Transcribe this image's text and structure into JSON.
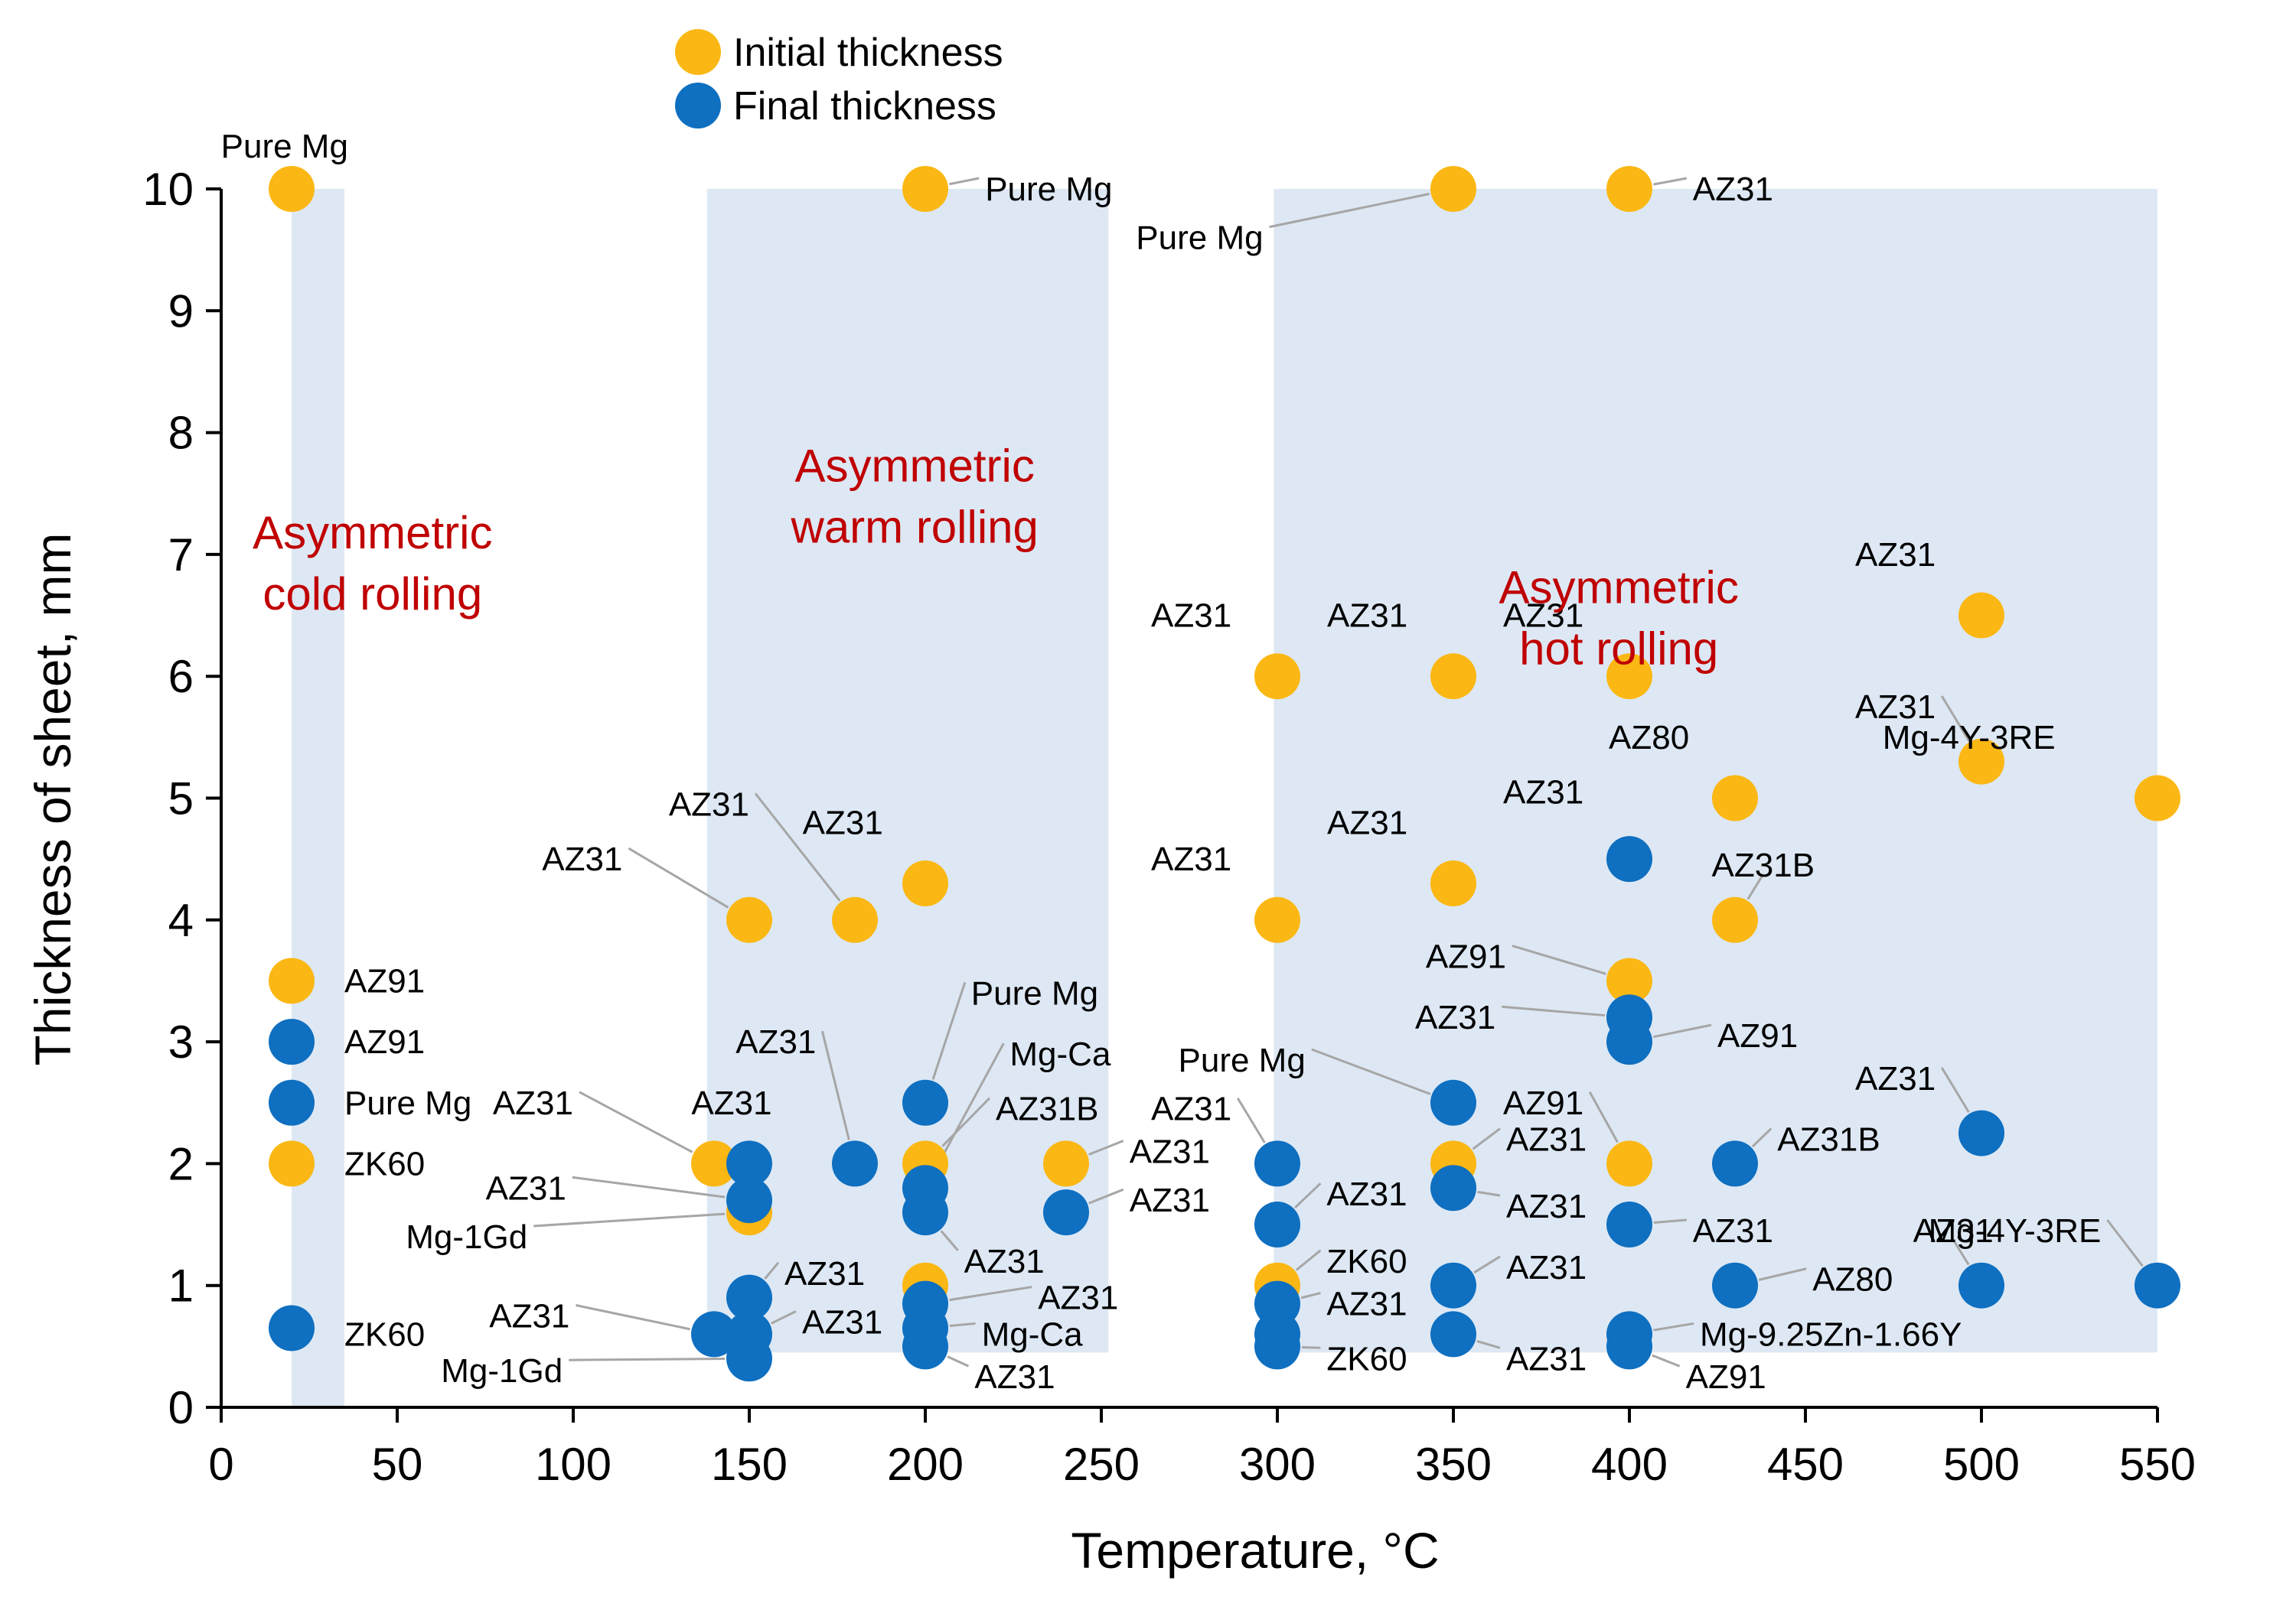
{
  "chart_data": {
    "type": "scatter",
    "xlabel": "Temperature, °C",
    "ylabel": "Thickness of sheet, mm",
    "xlim": [
      0,
      550
    ],
    "ylim": [
      0,
      10
    ],
    "xticks": [
      0,
      50,
      100,
      150,
      200,
      250,
      300,
      350,
      400,
      450,
      500,
      550
    ],
    "yticks": [
      0,
      1,
      2,
      3,
      4,
      5,
      6,
      7,
      8,
      9,
      10
    ],
    "colors": {
      "initial": "#fbb714",
      "final": "#0f6fc0",
      "region": "#dde8f4",
      "region_text": "#c00000"
    },
    "legend": [
      {
        "name": "Initial thickness",
        "series": "initial"
      },
      {
        "name": "Final thickness",
        "series": "final"
      }
    ],
    "regions": [
      {
        "x": [
          20,
          35
        ],
        "y": [
          0,
          10
        ],
        "label": [
          "Asymmetric",
          "cold rolling"
        ],
        "label_at": [
          43,
          7.05
        ]
      },
      {
        "x": [
          138,
          252
        ],
        "y": [
          0.45,
          10
        ],
        "label": [
          "Asymmetric",
          "warm rolling"
        ],
        "label_at": [
          197,
          7.6
        ]
      },
      {
        "x": [
          299,
          550
        ],
        "y": [
          0.45,
          10
        ],
        "label": [
          "Asymmetric",
          "hot rolling"
        ],
        "label_at": [
          397,
          6.6
        ]
      }
    ],
    "series": [
      {
        "name": "Initial thickness",
        "key": "initial",
        "points": [
          {
            "x": 20,
            "y": 10,
            "label": "Pure Mg",
            "lx": 18,
            "ly": 10.35
          },
          {
            "x": 20,
            "y": 3.5,
            "label": "AZ91",
            "lx": 35,
            "ly": 3.5
          },
          {
            "x": 20,
            "y": 2,
            "label": "ZK60",
            "lx": 35,
            "ly": 2
          },
          {
            "x": 140,
            "y": 2,
            "label": "AZ31",
            "lx": 100,
            "ly": 2.5,
            "leader": true
          },
          {
            "x": 150,
            "y": 4,
            "label": "AZ31",
            "lx": 114,
            "ly": 4.5,
            "leader": true
          },
          {
            "x": 150,
            "y": 1.6,
            "label": "Mg-1Gd",
            "lx": 87,
            "ly": 1.4,
            "leader": true
          },
          {
            "x": 180,
            "y": 4,
            "label": "AZ31",
            "lx": 150,
            "ly": 4.95,
            "leader": true
          },
          {
            "x": 200,
            "y": 4.3,
            "label": "AZ31",
            "lx": 188,
            "ly": 4.8
          },
          {
            "x": 200,
            "y": 10,
            "label": "Pure Mg",
            "lx": 217,
            "ly": 10,
            "leader": true
          },
          {
            "x": 200,
            "y": 2,
            "label": "AZ31B",
            "lx": 220,
            "ly": 2.45,
            "leader": true
          },
          {
            "x": 200,
            "y": 1,
            "label": "",
            "lx": 0,
            "ly": 0
          },
          {
            "x": 240,
            "y": 2,
            "label": "AZ31",
            "lx": 258,
            "ly": 2.1,
            "leader": true
          },
          {
            "x": 300,
            "y": 6,
            "label": "AZ31",
            "lx": 287,
            "ly": 6.5
          },
          {
            "x": 300,
            "y": 4,
            "label": "AZ31",
            "lx": 287,
            "ly": 4.5
          },
          {
            "x": 300,
            "y": 1,
            "label": "ZK60",
            "lx": 314,
            "ly": 1.2,
            "leader": true
          },
          {
            "x": 350,
            "y": 10,
            "label": "Pure Mg",
            "lx": 296,
            "ly": 9.6,
            "leader": true
          },
          {
            "x": 350,
            "y": 6,
            "label": "AZ31",
            "lx": 337,
            "ly": 6.5
          },
          {
            "x": 350,
            "y": 4.3,
            "label": "AZ31",
            "lx": 337,
            "ly": 4.8
          },
          {
            "x": 350,
            "y": 2,
            "label": "AZ31",
            "lx": 365,
            "ly": 2.2,
            "leader": true
          },
          {
            "x": 400,
            "y": 10,
            "label": "AZ31",
            "lx": 418,
            "ly": 10,
            "leader": true
          },
          {
            "x": 400,
            "y": 6,
            "label": "AZ31",
            "lx": 387,
            "ly": 6.5
          },
          {
            "x": 400,
            "y": 3.5,
            "label": "AZ91",
            "lx": 365,
            "ly": 3.7,
            "leader": true
          },
          {
            "x": 400,
            "y": 2,
            "label": "AZ91",
            "lx": 387,
            "ly": 2.5,
            "leader": true
          },
          {
            "x": 430,
            "y": 5,
            "label": "AZ80",
            "lx": 417,
            "ly": 5.5
          },
          {
            "x": 430,
            "y": 4,
            "label": "AZ31B",
            "lx": 438,
            "ly": 4.45,
            "leader": true
          },
          {
            "x": 500,
            "y": 6.5,
            "label": "AZ31",
            "lx": 487,
            "ly": 7.0
          },
          {
            "x": 500,
            "y": 5.3,
            "label": "AZ31",
            "lx": 487,
            "ly": 5.75,
            "leader": true
          },
          {
            "x": 550,
            "y": 5,
            "label": "Mg-4Y-3RE",
            "lx": 521,
            "ly": 5.5
          }
        ]
      },
      {
        "name": "Final thickness",
        "key": "final",
        "points": [
          {
            "x": 20,
            "y": 3,
            "label": "AZ91",
            "lx": 35,
            "ly": 3
          },
          {
            "x": 20,
            "y": 2.5,
            "label": "Pure Mg",
            "lx": 35,
            "ly": 2.5
          },
          {
            "x": 20,
            "y": 0.65,
            "label": "ZK60",
            "lx": 35,
            "ly": 0.6
          },
          {
            "x": 140,
            "y": 0.6,
            "label": "AZ31",
            "lx": 99,
            "ly": 0.75,
            "leader": true
          },
          {
            "x": 150,
            "y": 2,
            "label": "AZ31",
            "lx": 145,
            "ly": 2.5
          },
          {
            "x": 150,
            "y": 1.7,
            "label": "AZ31",
            "lx": 98,
            "ly": 1.8,
            "leader": true
          },
          {
            "x": 150,
            "y": 0.9,
            "label": "AZ31",
            "lx": 160,
            "ly": 1.1,
            "leader": true
          },
          {
            "x": 150,
            "y": 0.6,
            "label": "AZ31",
            "lx": 165,
            "ly": 0.7,
            "leader": true
          },
          {
            "x": 150,
            "y": 0.4,
            "label": "Mg-1Gd",
            "lx": 97,
            "ly": 0.3,
            "leader": true
          },
          {
            "x": 180,
            "y": 2,
            "label": "AZ31",
            "lx": 169,
            "ly": 3.0,
            "leader": true
          },
          {
            "x": 200,
            "y": 2.5,
            "label": "Pure Mg",
            "lx": 213,
            "ly": 3.4,
            "leader": true
          },
          {
            "x": 200,
            "y": 1.8,
            "label": "Mg-Ca",
            "lx": 224,
            "ly": 2.9,
            "leader": true
          },
          {
            "x": 200,
            "y": 1.6,
            "label": "AZ31",
            "lx": 211,
            "ly": 1.2,
            "leader": true
          },
          {
            "x": 200,
            "y": 0.85,
            "label": "AZ31",
            "lx": 232,
            "ly": 0.9,
            "leader": true
          },
          {
            "x": 200,
            "y": 0.65,
            "label": "Mg-Ca",
            "lx": 216,
            "ly": 0.6,
            "leader": true
          },
          {
            "x": 200,
            "y": 0.5,
            "label": "AZ31",
            "lx": 214,
            "ly": 0.25,
            "leader": true
          },
          {
            "x": 240,
            "y": 1.6,
            "label": "AZ31",
            "lx": 258,
            "ly": 1.7,
            "leader": true
          },
          {
            "x": 300,
            "y": 2,
            "label": "AZ31",
            "lx": 287,
            "ly": 2.45,
            "leader": true
          },
          {
            "x": 300,
            "y": 1.5,
            "label": "AZ31",
            "lx": 314,
            "ly": 1.75,
            "leader": true
          },
          {
            "x": 300,
            "y": 0.85,
            "label": "AZ31",
            "lx": 314,
            "ly": 0.85,
            "leader": true
          },
          {
            "x": 300,
            "y": 0.5,
            "label": "ZK60",
            "lx": 314,
            "ly": 0.4,
            "leader": true
          },
          {
            "x": 300,
            "y": 0.6,
            "label": "",
            "lx": 0,
            "ly": 0
          },
          {
            "x": 350,
            "y": 2.5,
            "label": "Pure Mg",
            "lx": 308,
            "ly": 2.85,
            "leader": true
          },
          {
            "x": 350,
            "y": 1.8,
            "label": "AZ31",
            "lx": 365,
            "ly": 1.65,
            "leader": true
          },
          {
            "x": 350,
            "y": 1,
            "label": "AZ31",
            "lx": 365,
            "ly": 1.15,
            "leader": true
          },
          {
            "x": 350,
            "y": 0.6,
            "label": "AZ31",
            "lx": 365,
            "ly": 0.4,
            "leader": true
          },
          {
            "x": 400,
            "y": 4.5,
            "label": "AZ31",
            "lx": 387,
            "ly": 5.05
          },
          {
            "x": 400,
            "y": 3.2,
            "label": "AZ31",
            "lx": 362,
            "ly": 3.2,
            "leader": true
          },
          {
            "x": 400,
            "y": 3,
            "label": "AZ91",
            "lx": 425,
            "ly": 3.05,
            "leader": true
          },
          {
            "x": 400,
            "y": 1.5,
            "label": "AZ31",
            "lx": 418,
            "ly": 1.45,
            "leader": true
          },
          {
            "x": 400,
            "y": 0.6,
            "label": "Mg-9.25Zn-1.66Y",
            "lx": 420,
            "ly": 0.6,
            "leader": true
          },
          {
            "x": 400,
            "y": 0.5,
            "label": "AZ91",
            "lx": 416,
            "ly": 0.25,
            "leader": true
          },
          {
            "x": 430,
            "y": 2,
            "label": "AZ31B",
            "lx": 442,
            "ly": 2.2,
            "leader": true
          },
          {
            "x": 430,
            "y": 1,
            "label": "AZ80",
            "lx": 452,
            "ly": 1.05,
            "leader": true
          },
          {
            "x": 500,
            "y": 2.25,
            "label": "AZ31",
            "lx": 487,
            "ly": 2.7,
            "leader": true
          },
          {
            "x": 500,
            "y": 1,
            "label": "AZ31",
            "lx": 492,
            "ly": 1.45,
            "leader": true
          },
          {
            "x": 550,
            "y": 1,
            "label": "Mg-4Y-3RE",
            "lx": 534,
            "ly": 1.45,
            "leader": true
          }
        ]
      }
    ]
  }
}
